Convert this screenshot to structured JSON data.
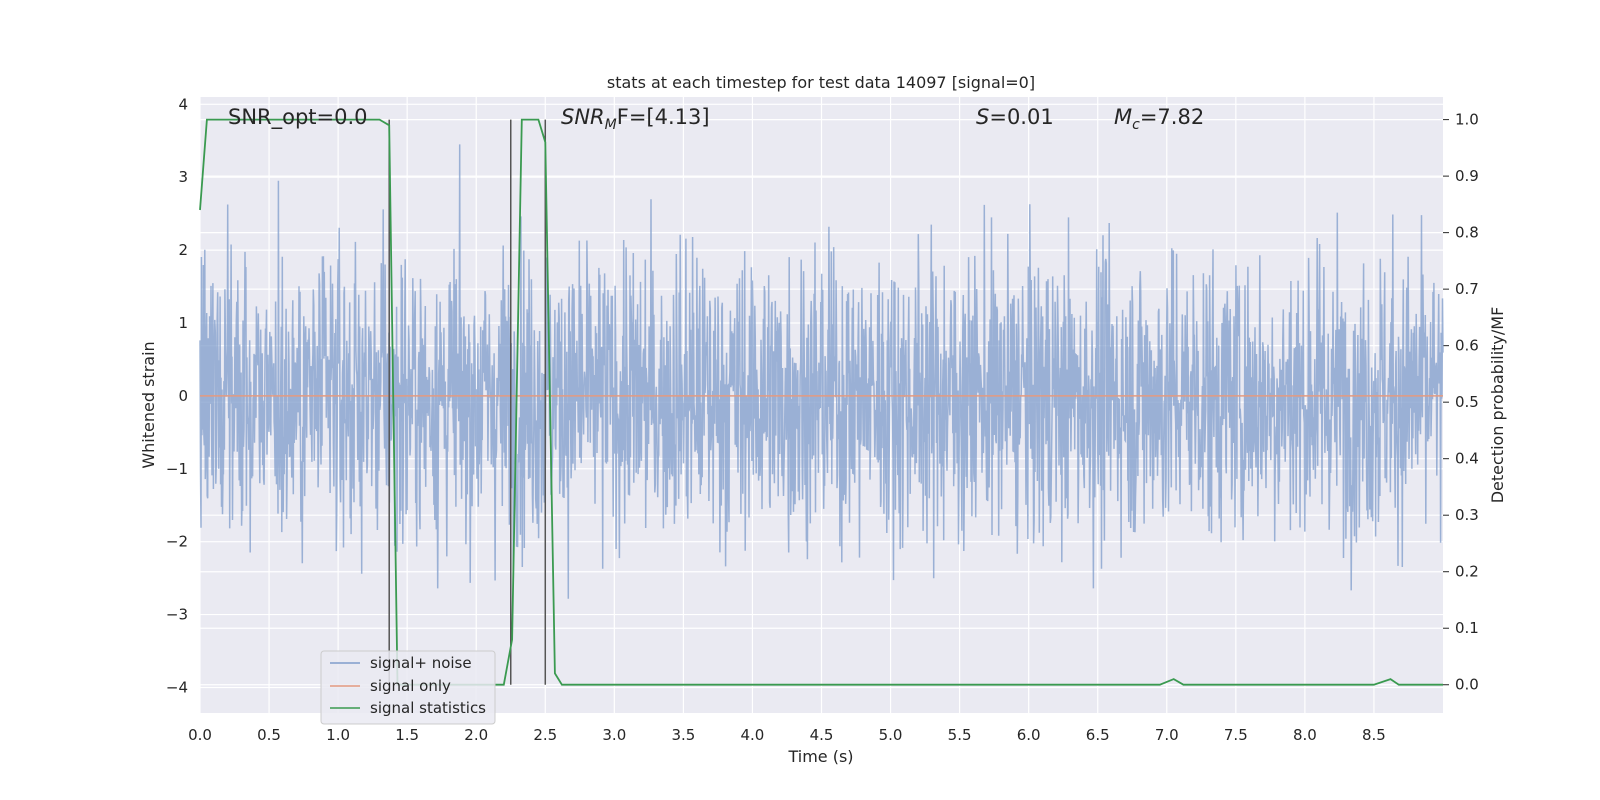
{
  "chart_data": {
    "type": "line",
    "title": "stats at each timestep for test data 14097 [signal=0]",
    "xlabel": "Time (s)",
    "ylabel": "Whitened strain",
    "y2label": "Detection probability/MF",
    "xlim": [
      0.0,
      9.0
    ],
    "ylim": [
      -4.35,
      4.1
    ],
    "y2lim": [
      -0.05,
      1.04
    ],
    "xticks": [
      "0.0",
      "0.5",
      "1.0",
      "1.5",
      "2.0",
      "2.5",
      "3.0",
      "3.5",
      "4.0",
      "4.5",
      "5.0",
      "5.5",
      "6.0",
      "6.5",
      "7.0",
      "7.5",
      "8.0",
      "8.5"
    ],
    "yticks": [
      "4",
      "3",
      "2",
      "1",
      "0",
      "−1",
      "−2",
      "−3",
      "−4"
    ],
    "y2ticks": [
      "1.0",
      "0.9",
      "0.8",
      "0.7",
      "0.6",
      "0.5",
      "0.4",
      "0.3",
      "0.2",
      "0.1",
      "0.0"
    ],
    "grid": true,
    "legend_placement": "lower-left",
    "annotations": {
      "snr_opt": "SNR_opt=0.0",
      "snr_mf_main": "SNR",
      "snr_mf_sub": "M",
      "snr_mf_tail": "F=[4.13]",
      "s_main": "S",
      "s_tail": "=0.01",
      "mc_main": "M",
      "mc_sub": "c",
      "mc_tail": "=7.82"
    },
    "vertical_lines_x": [
      1.37,
      2.25,
      2.5
    ],
    "series": [
      {
        "name": "signal+ noise",
        "color": "#7f9ccb",
        "description_axis": "left",
        "noise_std": 1.0
      },
      {
        "name": "signal only",
        "color": "#e39a80",
        "axis": "left",
        "x": [
          0.0,
          9.0
        ],
        "y": [
          0.0,
          0.0
        ]
      },
      {
        "name": "signal statistics",
        "color": "#3a9a50",
        "axis": "right",
        "x": [
          0.0,
          0.05,
          0.1,
          1.3,
          1.37,
          1.43,
          1.5,
          2.2,
          2.26,
          2.33,
          2.45,
          2.5,
          2.57,
          2.62,
          6.95,
          7.05,
          7.12,
          8.0,
          8.5,
          8.62,
          8.68,
          9.0
        ],
        "y": [
          0.84,
          1.0,
          1.0,
          1.0,
          0.99,
          0.0,
          0.0,
          0.0,
          0.08,
          1.0,
          1.0,
          0.96,
          0.02,
          0.0,
          0.0,
          0.01,
          0.0,
          0.0,
          0.0,
          0.01,
          0.0,
          0.0
        ]
      }
    ]
  }
}
